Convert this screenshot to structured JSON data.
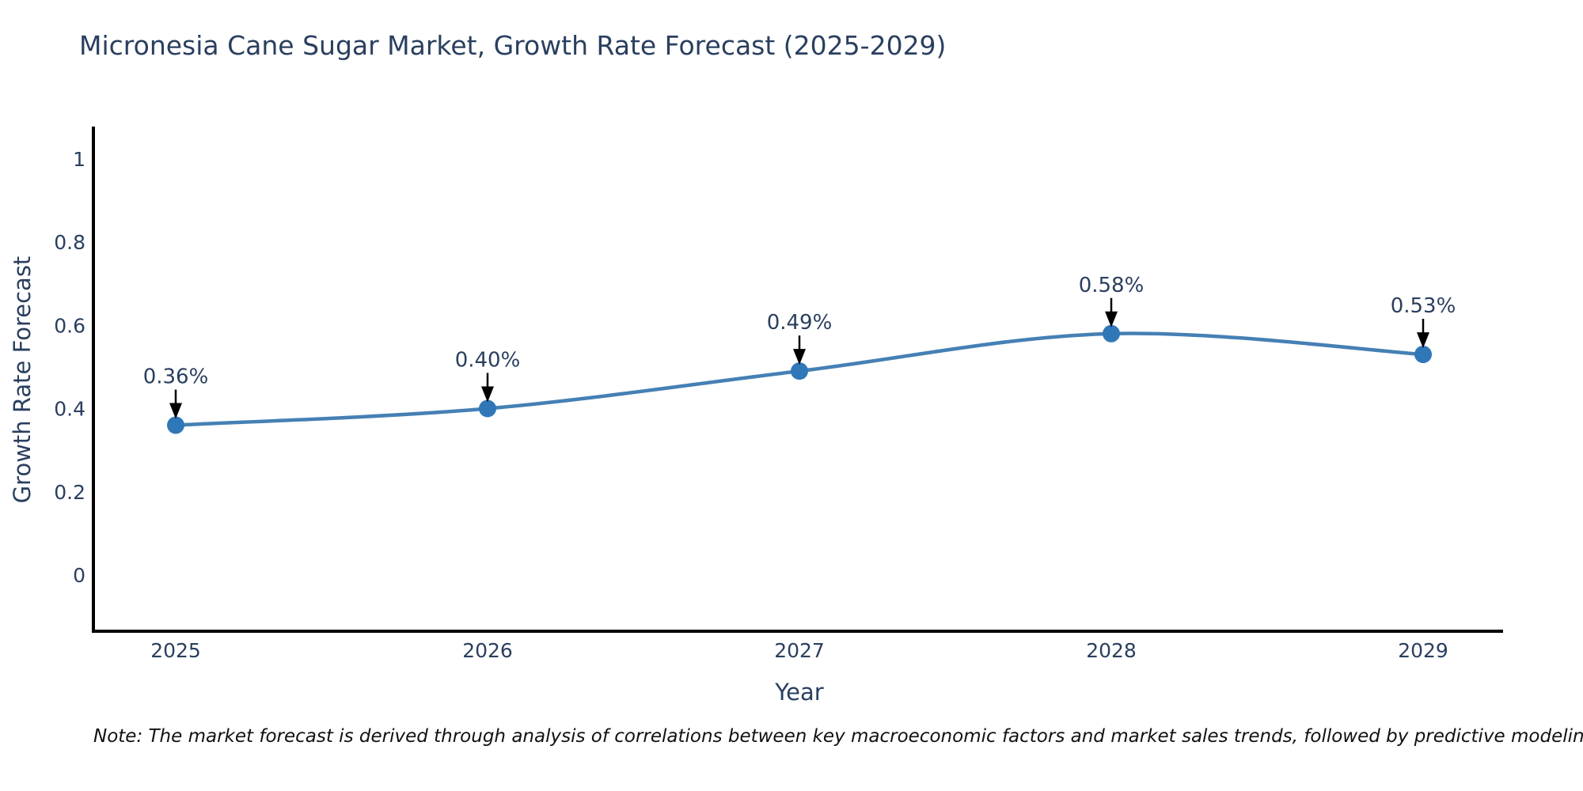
{
  "chart_data": {
    "type": "line",
    "title": "Micronesia Cane Sugar Market, Growth Rate Forecast (2025-2029)",
    "xlabel": "Year",
    "ylabel": "Growth Rate Forecast",
    "x": [
      2025,
      2026,
      2027,
      2028,
      2029
    ],
    "values": [
      0.36,
      0.4,
      0.49,
      0.58,
      0.53
    ],
    "point_labels": [
      "0.36%",
      "0.40%",
      "0.49%",
      "0.58%",
      "0.53%"
    ],
    "x_tick_labels": [
      "2025",
      "2026",
      "2027",
      "2028",
      "2029"
    ],
    "y_tick_values": [
      1,
      0.8,
      0.6,
      0.4,
      0.2,
      0
    ],
    "y_tick_labels": [
      "1",
      "0.8",
      "0.6",
      "0.4",
      "0.2",
      "0"
    ],
    "xlim": [
      2024.74,
      2029.26
    ],
    "ylim": [
      -0.135,
      1.08
    ],
    "grid": false,
    "legend": "none",
    "line_shape": "spline",
    "marker": "circle",
    "annotation_arrows": "down",
    "colors": {
      "line": "#4580b4",
      "marker": "#3077b8",
      "axis": "#000000",
      "arrow": "#000000",
      "text": "#2a3f5f",
      "note_text": "#111111",
      "background": "#ffffff"
    },
    "note": "Note: The market forecast is derived through analysis of correlations between key macroeconomic factors and market sales trends, followed by predictive modeling to project future sales"
  }
}
